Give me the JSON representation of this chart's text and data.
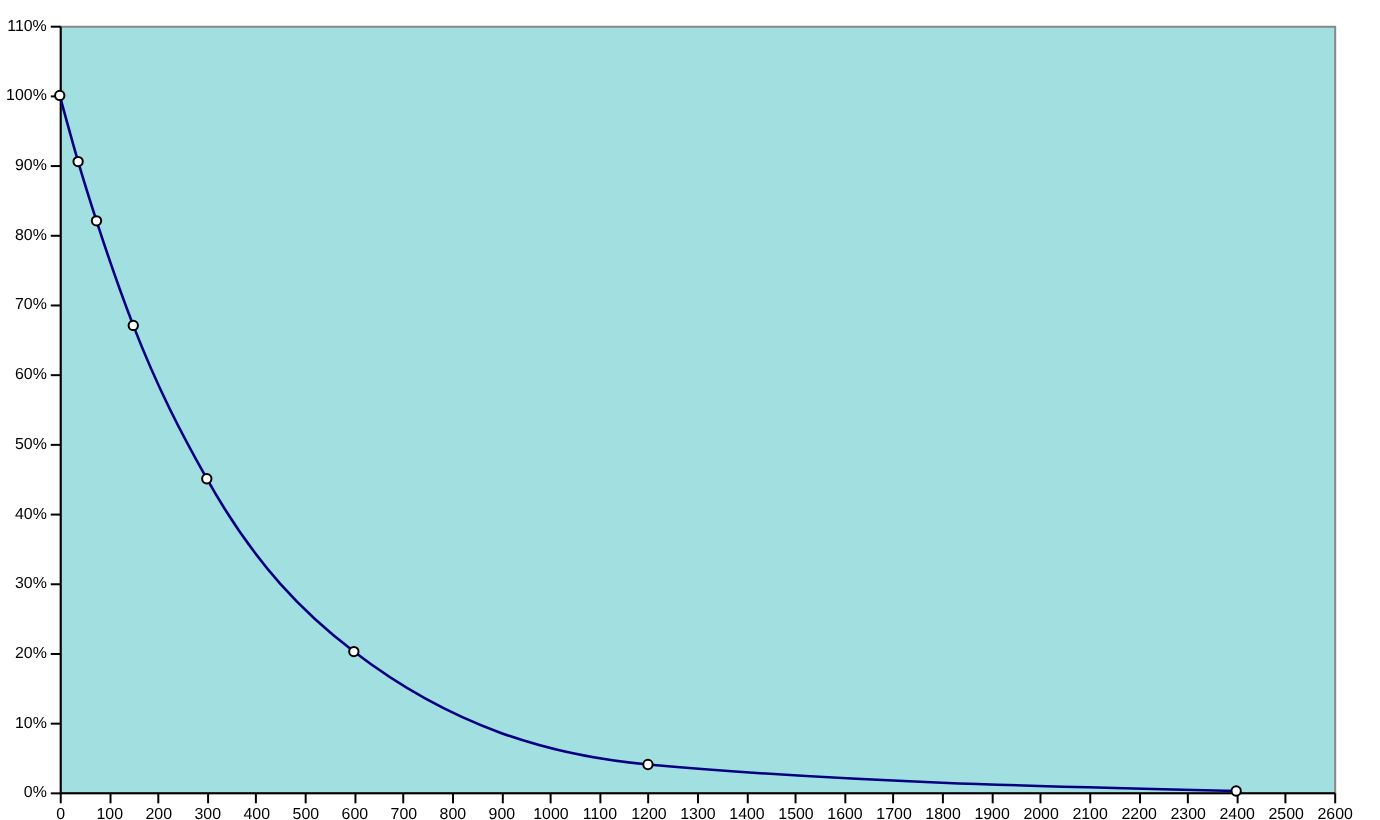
{
  "chart_data": {
    "type": "line",
    "x": [
      0,
      37.5,
      75,
      150,
      300,
      600,
      1200,
      2400
    ],
    "series": [
      {
        "color": "#000080",
        "values": [
          100,
          90.5,
          82,
          67,
          45,
          20.2,
          4.0,
          0.2
        ]
      }
    ],
    "xlim": [
      0,
      2600
    ],
    "xticks": [
      0,
      100,
      200,
      300,
      400,
      500,
      600,
      700,
      800,
      900,
      1000,
      1100,
      1200,
      1300,
      1400,
      1500,
      1600,
      1700,
      1800,
      1900,
      2000,
      2100,
      2200,
      2300,
      2400,
      2500,
      2600
    ],
    "ylim": [
      0,
      110
    ],
    "yticks": [
      {
        "value": 0,
        "label": "0%"
      },
      {
        "value": 10,
        "label": "10%"
      },
      {
        "value": 20,
        "label": "20%"
      },
      {
        "value": 30,
        "label": "30%"
      },
      {
        "value": 40,
        "label": "40%"
      },
      {
        "value": 50,
        "label": "50%"
      },
      {
        "value": 60,
        "label": "60%"
      },
      {
        "value": 70,
        "label": "70%"
      },
      {
        "value": 80,
        "label": "80%"
      },
      {
        "value": 90,
        "label": "90%"
      },
      {
        "value": 100,
        "label": "100%"
      },
      {
        "value": 110,
        "label": "110%"
      }
    ],
    "marker": "circle",
    "grid": false,
    "legend": false
  }
}
